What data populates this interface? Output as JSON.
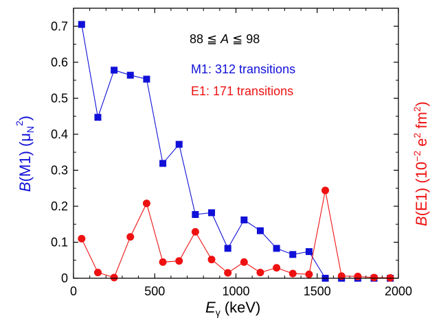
{
  "chart_data": {
    "type": "line",
    "x": [
      50,
      150,
      250,
      350,
      450,
      550,
      650,
      750,
      850,
      950,
      1050,
      1150,
      1250,
      1350,
      1450,
      1550,
      1650,
      1750,
      1850,
      1950
    ],
    "xlim": [
      0,
      2000
    ],
    "xticks": [
      0,
      500,
      1000,
      1500,
      2000
    ],
    "ylim": [
      0,
      0.75
    ],
    "yticks": [
      0,
      0.1,
      0.2,
      0.3,
      0.4,
      0.5,
      0.6,
      0.7
    ],
    "ytick_labels": [
      "0",
      "0.1",
      "0.2",
      "0.3",
      "0.4",
      "0.5",
      "0.6",
      "0.7"
    ],
    "xlabel": {
      "main": "E",
      "sub": "γ",
      "rest": " (keV)"
    },
    "ylabel_left": {
      "main": "B",
      "rest": "(M1) (μ",
      "sub": "N",
      "sup": "2",
      "close": ")"
    },
    "ylabel_right": {
      "main": "B",
      "rest": "(E1) (10",
      "sup": "−2",
      "mid": " e",
      "sup2": "2",
      "mid2": " fm",
      "sup3": "2",
      "close": ")"
    },
    "annotations": {
      "range": "88 ≦ A ≦ 98",
      "range_parts": {
        "pre": "88 ≦ ",
        "var": "A",
        "post": " ≦ 98"
      },
      "m1": "M1: 312 transitions",
      "e1": "E1: 171 transitions"
    },
    "series": [
      {
        "name": "M1: 312 transitions",
        "color": "#1010d8",
        "marker": "square",
        "axis": "left",
        "values": [
          0.705,
          0.447,
          0.578,
          0.564,
          0.553,
          0.319,
          0.372,
          0.177,
          0.182,
          0.083,
          0.162,
          0.132,
          0.083,
          0.066,
          0.074,
          0.0,
          0.0,
          0.0,
          0.0,
          0.0
        ]
      },
      {
        "name": "E1: 171 transitions",
        "color": "#ee1111",
        "marker": "circle",
        "axis": "right",
        "values": [
          0.11,
          0.016,
          0.002,
          0.115,
          0.208,
          0.045,
          0.048,
          0.129,
          0.052,
          0.015,
          0.045,
          0.016,
          0.029,
          0.013,
          0.011,
          0.244,
          0.006,
          0.005,
          0.002,
          0.001
        ]
      }
    ]
  }
}
